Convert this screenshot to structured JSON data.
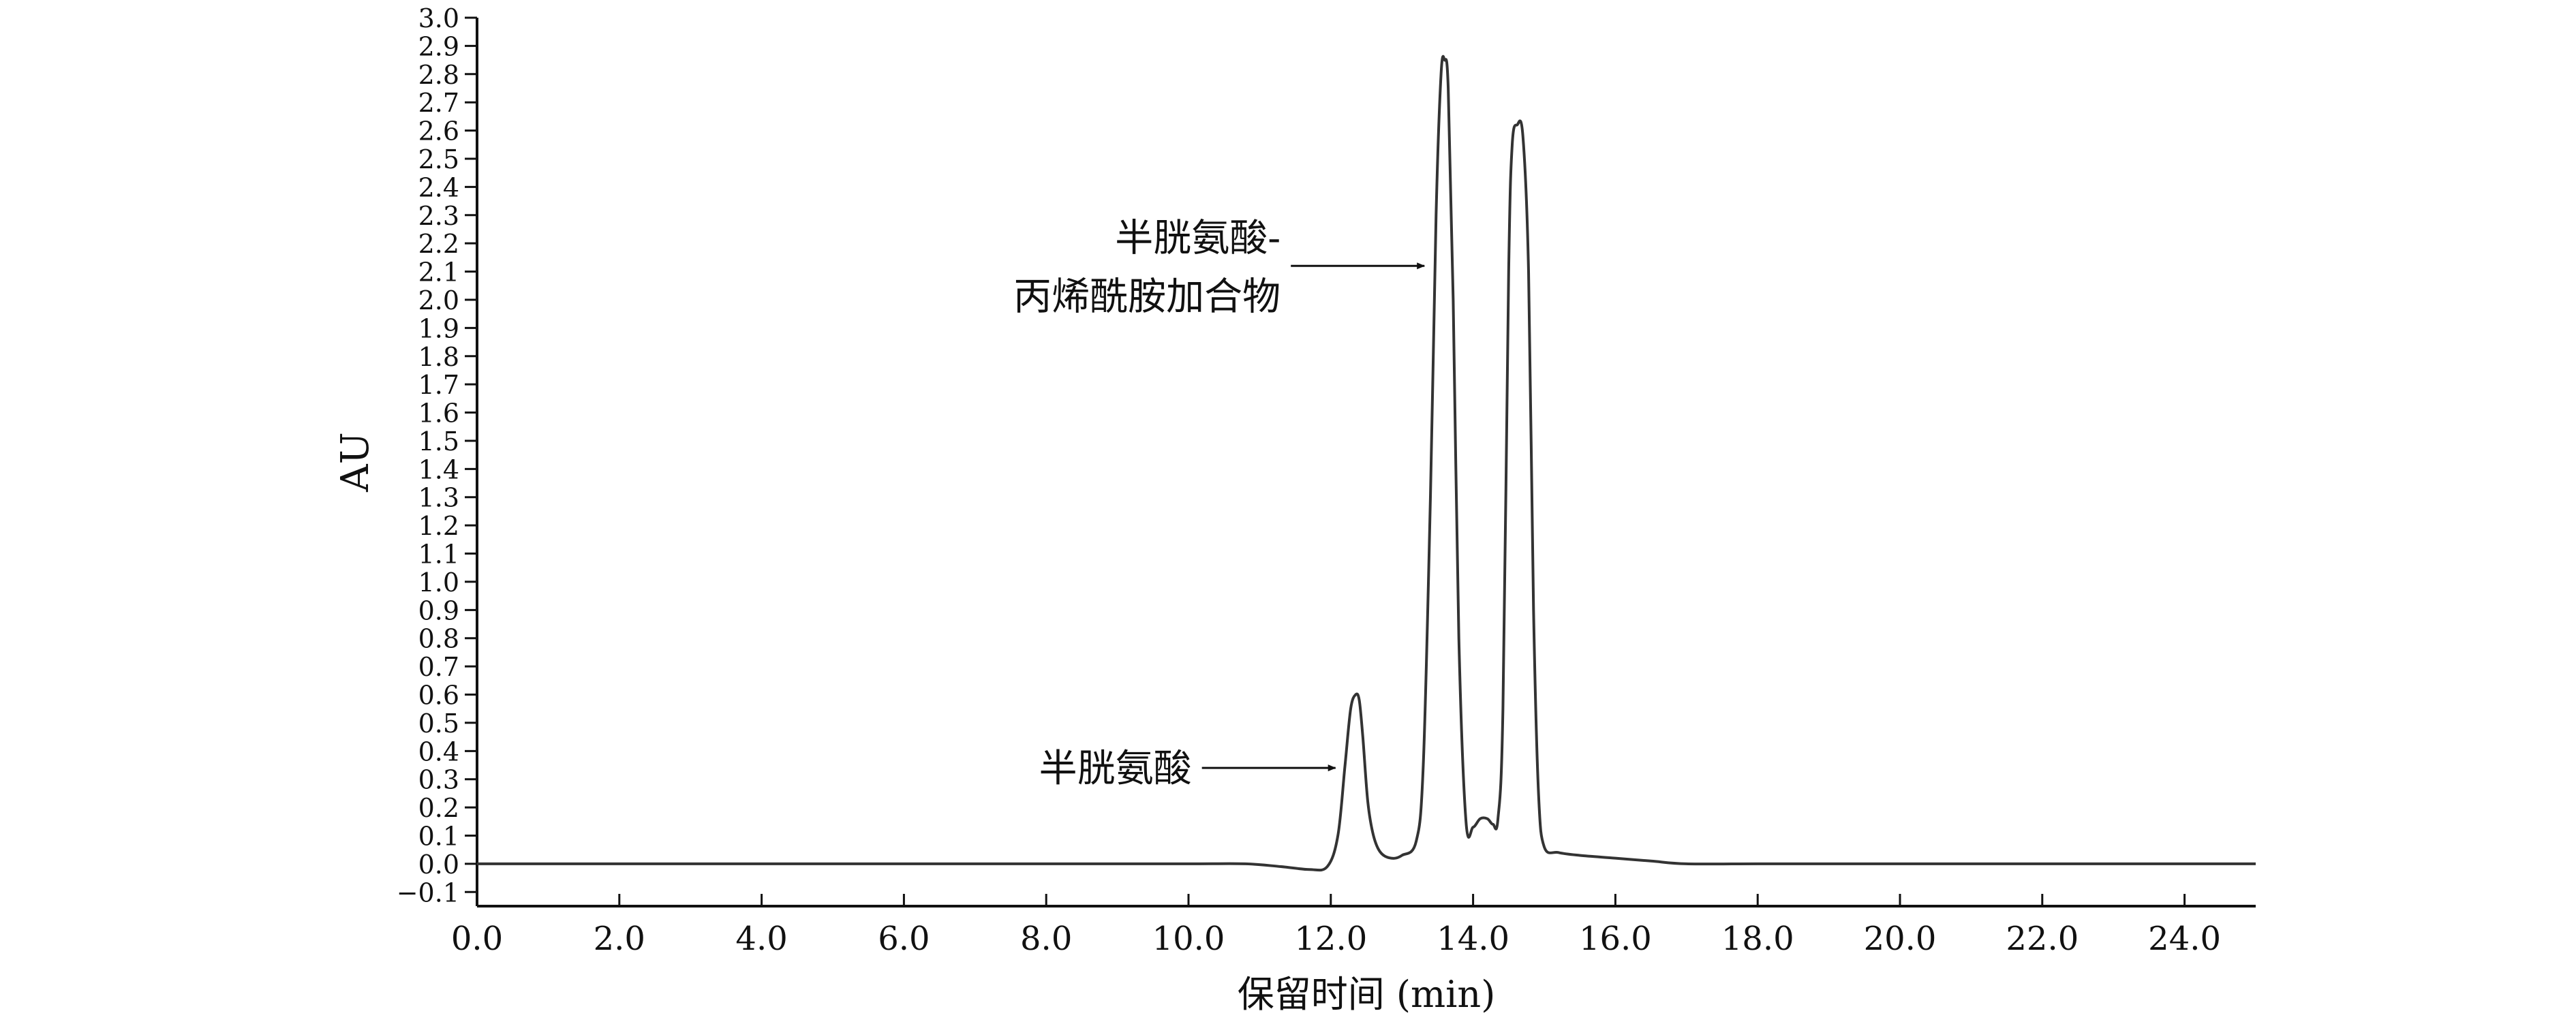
{
  "chart_data": {
    "type": "line",
    "title": "",
    "xlabel": "保留时间 (min)",
    "ylabel": "AU",
    "xlim": [
      0,
      25
    ],
    "ylim": [
      -0.15,
      3.0
    ],
    "grid": false,
    "x_ticks": [
      "0.0",
      "2.0",
      "4.0",
      "6.0",
      "8.0",
      "10.0",
      "12.0",
      "14.0",
      "16.0",
      "18.0",
      "20.0",
      "22.0",
      "24.0"
    ],
    "y_ticks": [
      "−0.1",
      "0.0",
      "0.1",
      "0.2",
      "0.3",
      "0.4",
      "0.5",
      "0.6",
      "0.7",
      "0.8",
      "0.9",
      "1.0",
      "1.1",
      "1.2",
      "1.3",
      "1.4",
      "1.5",
      "1.6",
      "1.7",
      "1.8",
      "1.9",
      "2.0",
      "2.1",
      "2.2",
      "2.3",
      "2.4",
      "2.5",
      "2.6",
      "2.7",
      "2.8",
      "2.9",
      "3.0"
    ],
    "series": [
      {
        "name": "",
        "color": "#333333",
        "x": [
          0,
          2,
          4,
          6,
          8,
          10,
          10.8,
          11.3,
          11.7,
          11.95,
          12.1,
          12.2,
          12.28,
          12.35,
          12.4,
          12.45,
          12.52,
          12.6,
          12.7,
          12.85,
          13.0,
          13.2,
          13.3,
          13.4,
          13.48,
          13.55,
          13.6,
          13.65,
          13.72,
          13.8,
          13.9,
          14.0,
          14.1,
          14.2,
          14.28,
          14.35,
          14.42,
          14.5,
          14.55,
          14.62,
          14.7,
          14.78,
          14.85,
          14.92,
          15.0,
          15.2,
          15.5,
          16.0,
          16.5,
          17.0,
          18,
          20,
          22,
          25
        ],
        "y": [
          0.0,
          0.0,
          0.0,
          0.0,
          0.0,
          0.0,
          0.0,
          -0.01,
          -0.02,
          -0.01,
          0.1,
          0.35,
          0.55,
          0.6,
          0.58,
          0.45,
          0.22,
          0.1,
          0.04,
          0.02,
          0.03,
          0.08,
          0.35,
          1.3,
          2.3,
          2.8,
          2.85,
          2.75,
          2.0,
          0.8,
          0.15,
          0.13,
          0.16,
          0.16,
          0.14,
          0.16,
          0.55,
          2.1,
          2.55,
          2.62,
          2.58,
          2.1,
          0.9,
          0.25,
          0.06,
          0.04,
          0.03,
          0.02,
          0.01,
          0.0,
          0.0,
          0.0,
          0.0,
          0.0
        ]
      }
    ],
    "annotations": [
      {
        "text": "半胱氨酸",
        "x": 12.2,
        "y": 0.34
      },
      {
        "lines": [
          "半胱氨酸-",
          "丙烯酰胺加合物"
        ],
        "x": 13.45,
        "y": 2.12
      }
    ]
  }
}
